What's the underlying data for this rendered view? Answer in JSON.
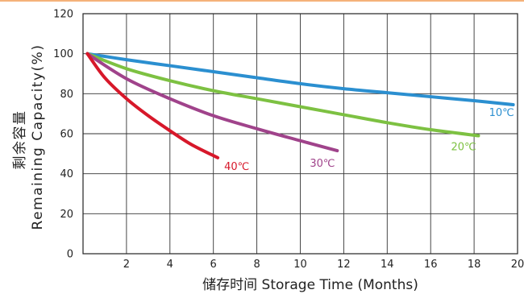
{
  "chart_data": {
    "type": "line",
    "ylabel_cn": "剩余容量",
    "ylabel": "Remaining Capacity(%)",
    "xlabel": "储存时间 Storage Time (Months)",
    "xlim": [
      0,
      20
    ],
    "ylim": [
      0,
      120
    ],
    "x_ticks": [
      "2",
      "4",
      "6",
      "8",
      "10",
      "12",
      "14",
      "16",
      "18",
      "20"
    ],
    "y_ticks": [
      "0",
      "20",
      "40",
      "60",
      "80",
      "100",
      "120"
    ],
    "grid": true,
    "series": [
      {
        "name": "10℃",
        "color": "#2b8fd0",
        "x": [
          0.2,
          2,
          4,
          6,
          8,
          10,
          12,
          14,
          16,
          18,
          19.8
        ],
        "y": [
          100,
          97,
          94,
          91,
          88,
          85,
          82.5,
          80.5,
          78.5,
          76.5,
          74.5
        ]
      },
      {
        "name": "20℃",
        "color": "#7dc142",
        "x": [
          0.2,
          2,
          4,
          6,
          8,
          10,
          12,
          14,
          16,
          18.2
        ],
        "y": [
          100,
          92.5,
          86.5,
          81.5,
          77.5,
          73.5,
          69.5,
          65.5,
          62,
          59
        ]
      },
      {
        "name": "30℃",
        "color": "#a0438b",
        "x": [
          0.2,
          2,
          4,
          6,
          8,
          10,
          11.7
        ],
        "y": [
          100,
          87.5,
          77.5,
          69,
          62.5,
          56.5,
          51.5
        ]
      },
      {
        "name": "40℃",
        "color": "#d7182a",
        "x": [
          0.2,
          1,
          2,
          3,
          4,
          5,
          6.2
        ],
        "y": [
          100,
          88,
          77.5,
          69,
          61.5,
          54.5,
          48
        ]
      }
    ]
  }
}
